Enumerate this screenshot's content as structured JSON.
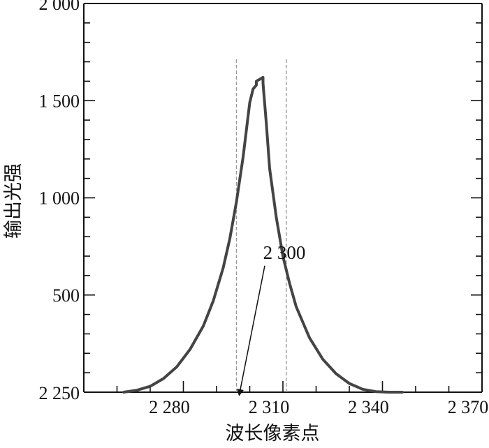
{
  "chart_data": {
    "type": "line",
    "title": "",
    "xlabel": "波长像素点",
    "ylabel": "输出光强",
    "xlim": [
      2250,
      2370
    ],
    "ylim": [
      0,
      2000
    ],
    "x_ticks": [
      {
        "value": 2280,
        "label": "2 280"
      },
      {
        "value": 2310,
        "label": "2 310"
      },
      {
        "value": 2340,
        "label": "2 340"
      },
      {
        "value": 2370,
        "label": "2 370"
      }
    ],
    "y_ticks": [
      {
        "value": 500,
        "label": "500"
      },
      {
        "value": 1000,
        "label": "1 000"
      },
      {
        "value": 1500,
        "label": "1 500"
      },
      {
        "value": 2000,
        "label": "2 000"
      }
    ],
    "origin_label": "2 250",
    "grid": false,
    "series": [
      {
        "color": "#444444",
        "x": [
          2262,
          2266,
          2270,
          2274,
          2278,
          2282,
          2286,
          2289,
          2292,
          2294,
          2296,
          2298,
          2300,
          2301,
          2302,
          2302,
          2303,
          2304,
          2304,
          2305,
          2306,
          2308,
          2310,
          2312,
          2314,
          2318,
          2322,
          2326,
          2330,
          2334,
          2338,
          2342,
          2346
        ],
        "y": [
          0,
          10,
          30,
          70,
          130,
          220,
          340,
          470,
          640,
          790,
          980,
          1210,
          1490,
          1560,
          1580,
          1600,
          1610,
          1620,
          1590,
          1380,
          1150,
          900,
          700,
          560,
          440,
          280,
          170,
          95,
          45,
          15,
          3,
          0,
          0
        ]
      }
    ],
    "reference_lines": [
      {
        "x": 2296,
        "style": "dashed",
        "color": "#999999"
      },
      {
        "x": 2311,
        "style": "dashed",
        "color": "#999999"
      }
    ],
    "annotations": [
      {
        "text": "2 300",
        "text_x": 2302,
        "text_y": 500,
        "arrow_to_x": 2296,
        "arrow_to_y": 130
      }
    ]
  }
}
